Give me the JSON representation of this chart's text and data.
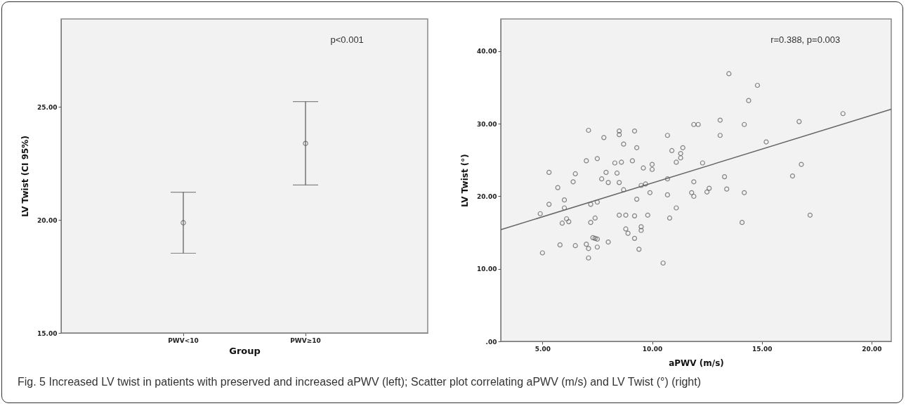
{
  "chart_data": [
    {
      "type": "scatter",
      "categories": [
        "PWV<10",
        "PWV≥10"
      ],
      "values": [
        19.88,
        23.39
      ],
      "errors": [
        [
          18.53,
          21.23
        ],
        [
          21.55,
          25.24
        ]
      ],
      "color": "#555555",
      "marker": "circle",
      "xlabel": "Group",
      "ylabel": "LV Twist (CI 95%)",
      "ylim": [
        15,
        28.9
      ],
      "yticks": [
        {
          "value": 15,
          "label": "15.00"
        },
        {
          "value": 20,
          "label": "20.00"
        },
        {
          "value": 25,
          "label": "25.00"
        }
      ],
      "annotations": [
        "p<0.001"
      ]
    },
    {
      "type": "scatter",
      "xlabel": "aPWV (m/s)",
      "ylabel": "LV Twist (°)",
      "xlim": [
        3.1,
        20.9
      ],
      "ylim": [
        0,
        44.45
      ],
      "xticks": [
        {
          "value": 5,
          "label": "5.00"
        },
        {
          "value": 10,
          "label": "10.00"
        },
        {
          "value": 15,
          "label": "15.00"
        },
        {
          "value": 20,
          "label": "20.00"
        }
      ],
      "yticks": [
        {
          "value": 0,
          "label": ".00"
        },
        {
          "value": 10,
          "label": "10.00"
        },
        {
          "value": 20,
          "label": "20.00"
        },
        {
          "value": 30,
          "label": "30.00"
        },
        {
          "value": 40,
          "label": "40.00"
        }
      ],
      "series": [
        {
          "type": "scatter",
          "marker": "circle",
          "color": "#555555",
          "x": [
            5.3,
            5.7,
            5.3,
            6.0,
            6.0,
            6.4,
            6.5,
            7.1,
            7.0,
            7.5,
            7.8,
            7.2,
            7.5,
            7.7,
            7.9,
            8.0,
            8.3,
            8.6,
            8.4,
            8.5,
            8.5,
            8.5,
            8.7,
            8.7,
            9.1,
            9.2,
            9.3,
            9.3,
            9.5,
            9.7,
            9.6,
            9.9,
            10.0,
            10.0,
            10.7,
            10.7,
            10.7,
            10.9,
            11.1,
            11.1,
            4.9,
            5.0,
            5.9,
            6.1,
            6.2,
            5.8,
            6.5,
            7.0,
            7.1,
            7.1,
            7.2,
            7.4,
            7.3,
            7.4,
            7.5,
            7.5,
            8.0,
            8.5,
            8.8,
            9.2,
            8.8,
            8.9,
            9.2,
            9.4,
            9.5,
            9.5,
            9.8,
            10.5,
            10.8,
            13.5,
            14.8,
            14.4,
            13.1,
            13.1,
            11.9,
            12.1,
            14.2,
            16.7,
            18.7,
            15.2,
            11.4,
            11.3,
            11.3,
            12.3,
            13.3,
            11.9,
            11.8,
            11.9,
            12.5,
            12.6,
            13.4,
            14.2,
            16.8,
            16.4,
            14.1,
            17.2
          ],
          "values": [
            23.3,
            21.2,
            18.9,
            19.5,
            18.4,
            22.0,
            23.1,
            29.1,
            24.9,
            25.2,
            28.1,
            18.9,
            19.2,
            22.4,
            23.3,
            21.9,
            24.6,
            24.7,
            23.2,
            21.9,
            29.0,
            28.5,
            27.2,
            20.9,
            24.9,
            29.0,
            26.7,
            19.6,
            21.5,
            21.7,
            23.9,
            20.5,
            24.4,
            23.7,
            28.4,
            22.4,
            20.2,
            26.3,
            24.7,
            18.4,
            17.6,
            12.2,
            16.3,
            16.9,
            16.5,
            13.3,
            13.2,
            13.4,
            12.8,
            11.5,
            16.4,
            17.0,
            14.3,
            14.2,
            14.1,
            13.0,
            13.7,
            17.4,
            17.4,
            17.3,
            15.5,
            14.9,
            14.2,
            12.7,
            15.8,
            15.3,
            17.4,
            10.8,
            17.0,
            36.9,
            35.3,
            33.2,
            30.5,
            28.4,
            29.9,
            29.9,
            29.9,
            30.3,
            31.4,
            27.5,
            26.7,
            25.9,
            25.3,
            24.6,
            22.7,
            22.0,
            20.5,
            20.0,
            20.6,
            21.1,
            21.0,
            20.5,
            24.4,
            22.8,
            16.4,
            17.4
          ]
        },
        {
          "type": "line",
          "color": "#666666",
          "x": [
            3.1,
            20.9
          ],
          "values": [
            15.4,
            32.0
          ]
        }
      ],
      "annotations": [
        "r=0.388, p=0.003",
        "Fig. 5 Increased LV twist in patients with preserved and increased aPWV (left); Scatter plot correlating aPWV (m/s) and LV Twist (°) (right)"
      ]
    }
  ]
}
